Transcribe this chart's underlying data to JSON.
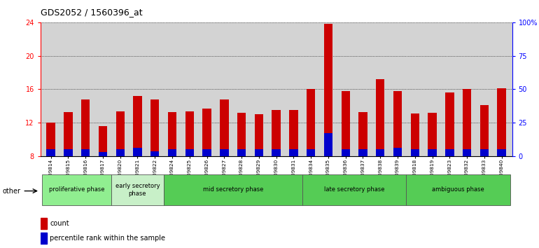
{
  "title": "GDS2052 / 1560396_at",
  "samples": [
    "GSM109814",
    "GSM109815",
    "GSM109816",
    "GSM109817",
    "GSM109820",
    "GSM109821",
    "GSM109822",
    "GSM109824",
    "GSM109825",
    "GSM109826",
    "GSM109827",
    "GSM109828",
    "GSM109829",
    "GSM109830",
    "GSM109831",
    "GSM109834",
    "GSM109835",
    "GSM109836",
    "GSM109837",
    "GSM109838",
    "GSM109839",
    "GSM109818",
    "GSM109819",
    "GSM109823",
    "GSM109832",
    "GSM109833",
    "GSM109840"
  ],
  "count_values": [
    12.0,
    13.3,
    14.8,
    11.6,
    13.4,
    15.2,
    14.8,
    13.3,
    13.4,
    13.7,
    14.8,
    13.2,
    13.0,
    13.5,
    13.5,
    16.0,
    23.8,
    15.8,
    13.3,
    17.2,
    15.8,
    13.1,
    13.2,
    15.6,
    16.0,
    14.1,
    16.1
  ],
  "percentile_values": [
    8.8,
    8.8,
    8.8,
    8.5,
    8.8,
    9.0,
    8.6,
    8.8,
    8.8,
    8.8,
    8.8,
    8.8,
    8.8,
    8.8,
    8.8,
    8.8,
    10.8,
    8.8,
    8.8,
    8.8,
    9.0,
    8.8,
    8.8,
    8.8,
    8.8,
    8.8,
    8.8
  ],
  "bar_color": "#cc0000",
  "percentile_color": "#0000cc",
  "bar_width": 0.5,
  "ylim_left": [
    8,
    24
  ],
  "ylim_right": [
    0,
    100
  ],
  "yticks_left": [
    8,
    12,
    16,
    20,
    24
  ],
  "yticks_right": [
    0,
    25,
    50,
    75,
    100
  ],
  "ytick_labels_right": [
    "0",
    "25",
    "50",
    "75",
    "100%"
  ],
  "group_configs": [
    {
      "label": "proliferative phase",
      "start": 0,
      "end": 4,
      "color": "#90ee90"
    },
    {
      "label": "early secretory\nphase",
      "start": 4,
      "end": 7,
      "color": "#c8f0c8"
    },
    {
      "label": "mid secretory phase",
      "start": 7,
      "end": 15,
      "color": "#55cc55"
    },
    {
      "label": "late secretory phase",
      "start": 15,
      "end": 21,
      "color": "#55cc55"
    },
    {
      "label": "ambiguous phase",
      "start": 21,
      "end": 27,
      "color": "#55cc55"
    }
  ],
  "bg_color": "#d3d3d3",
  "gridline_color": "#000000",
  "legend_count_label": "count",
  "legend_percentile_label": "percentile rank within the sample",
  "other_label": "other"
}
